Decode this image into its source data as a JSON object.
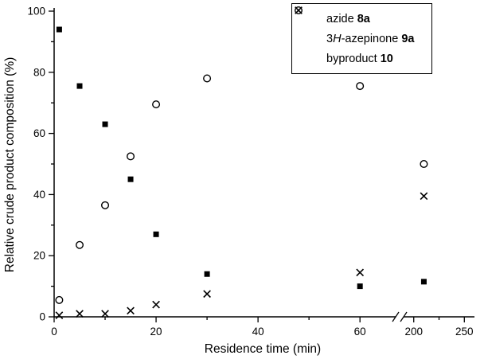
{
  "chart_data": {
    "type": "scatter",
    "title": "",
    "xlabel": "Residence time (min)",
    "ylabel": "Relative crude product composition (%)",
    "x_axis": {
      "break": true,
      "segments": [
        {
          "range": [
            0,
            67
          ],
          "ticks": [
            0,
            20,
            40,
            60
          ],
          "minor_ticks": [
            10,
            30,
            50
          ]
        },
        {
          "range": [
            190,
            260
          ],
          "ticks": [
            200,
            250
          ],
          "minor_ticks": [
            225
          ]
        }
      ]
    },
    "y_axis": {
      "range": [
        0,
        100
      ],
      "ticks": [
        0,
        20,
        40,
        60,
        80,
        100
      ],
      "minor_ticks": [
        10,
        30,
        50,
        70,
        90
      ]
    },
    "series": [
      {
        "name": "azide 8a",
        "marker": "filled-square",
        "legend": {
          "pre": "azide ",
          "bold": "8a"
        },
        "x": [
          1,
          5,
          10,
          15,
          20,
          30,
          60,
          210
        ],
        "y": [
          94,
          75.5,
          63,
          45,
          27,
          14,
          10,
          11.5
        ]
      },
      {
        "name": "3H-azepinone 9a",
        "marker": "open-circle",
        "legend": {
          "pre": "3",
          "italic": "H",
          "mid": "-azepinone ",
          "bold": "9a"
        },
        "x": [
          1,
          5,
          10,
          15,
          20,
          30,
          60,
          210
        ],
        "y": [
          5.5,
          23.5,
          36.5,
          52.5,
          69.5,
          78,
          75.5,
          50
        ]
      },
      {
        "name": "byproduct 10",
        "marker": "x-cross",
        "legend": {
          "pre": "byproduct ",
          "bold": "10"
        },
        "x": [
          1,
          5,
          10,
          15,
          20,
          30,
          60,
          210
        ],
        "y": [
          0.5,
          1,
          1,
          2,
          4,
          7.5,
          14.5,
          39.5
        ]
      }
    ]
  }
}
